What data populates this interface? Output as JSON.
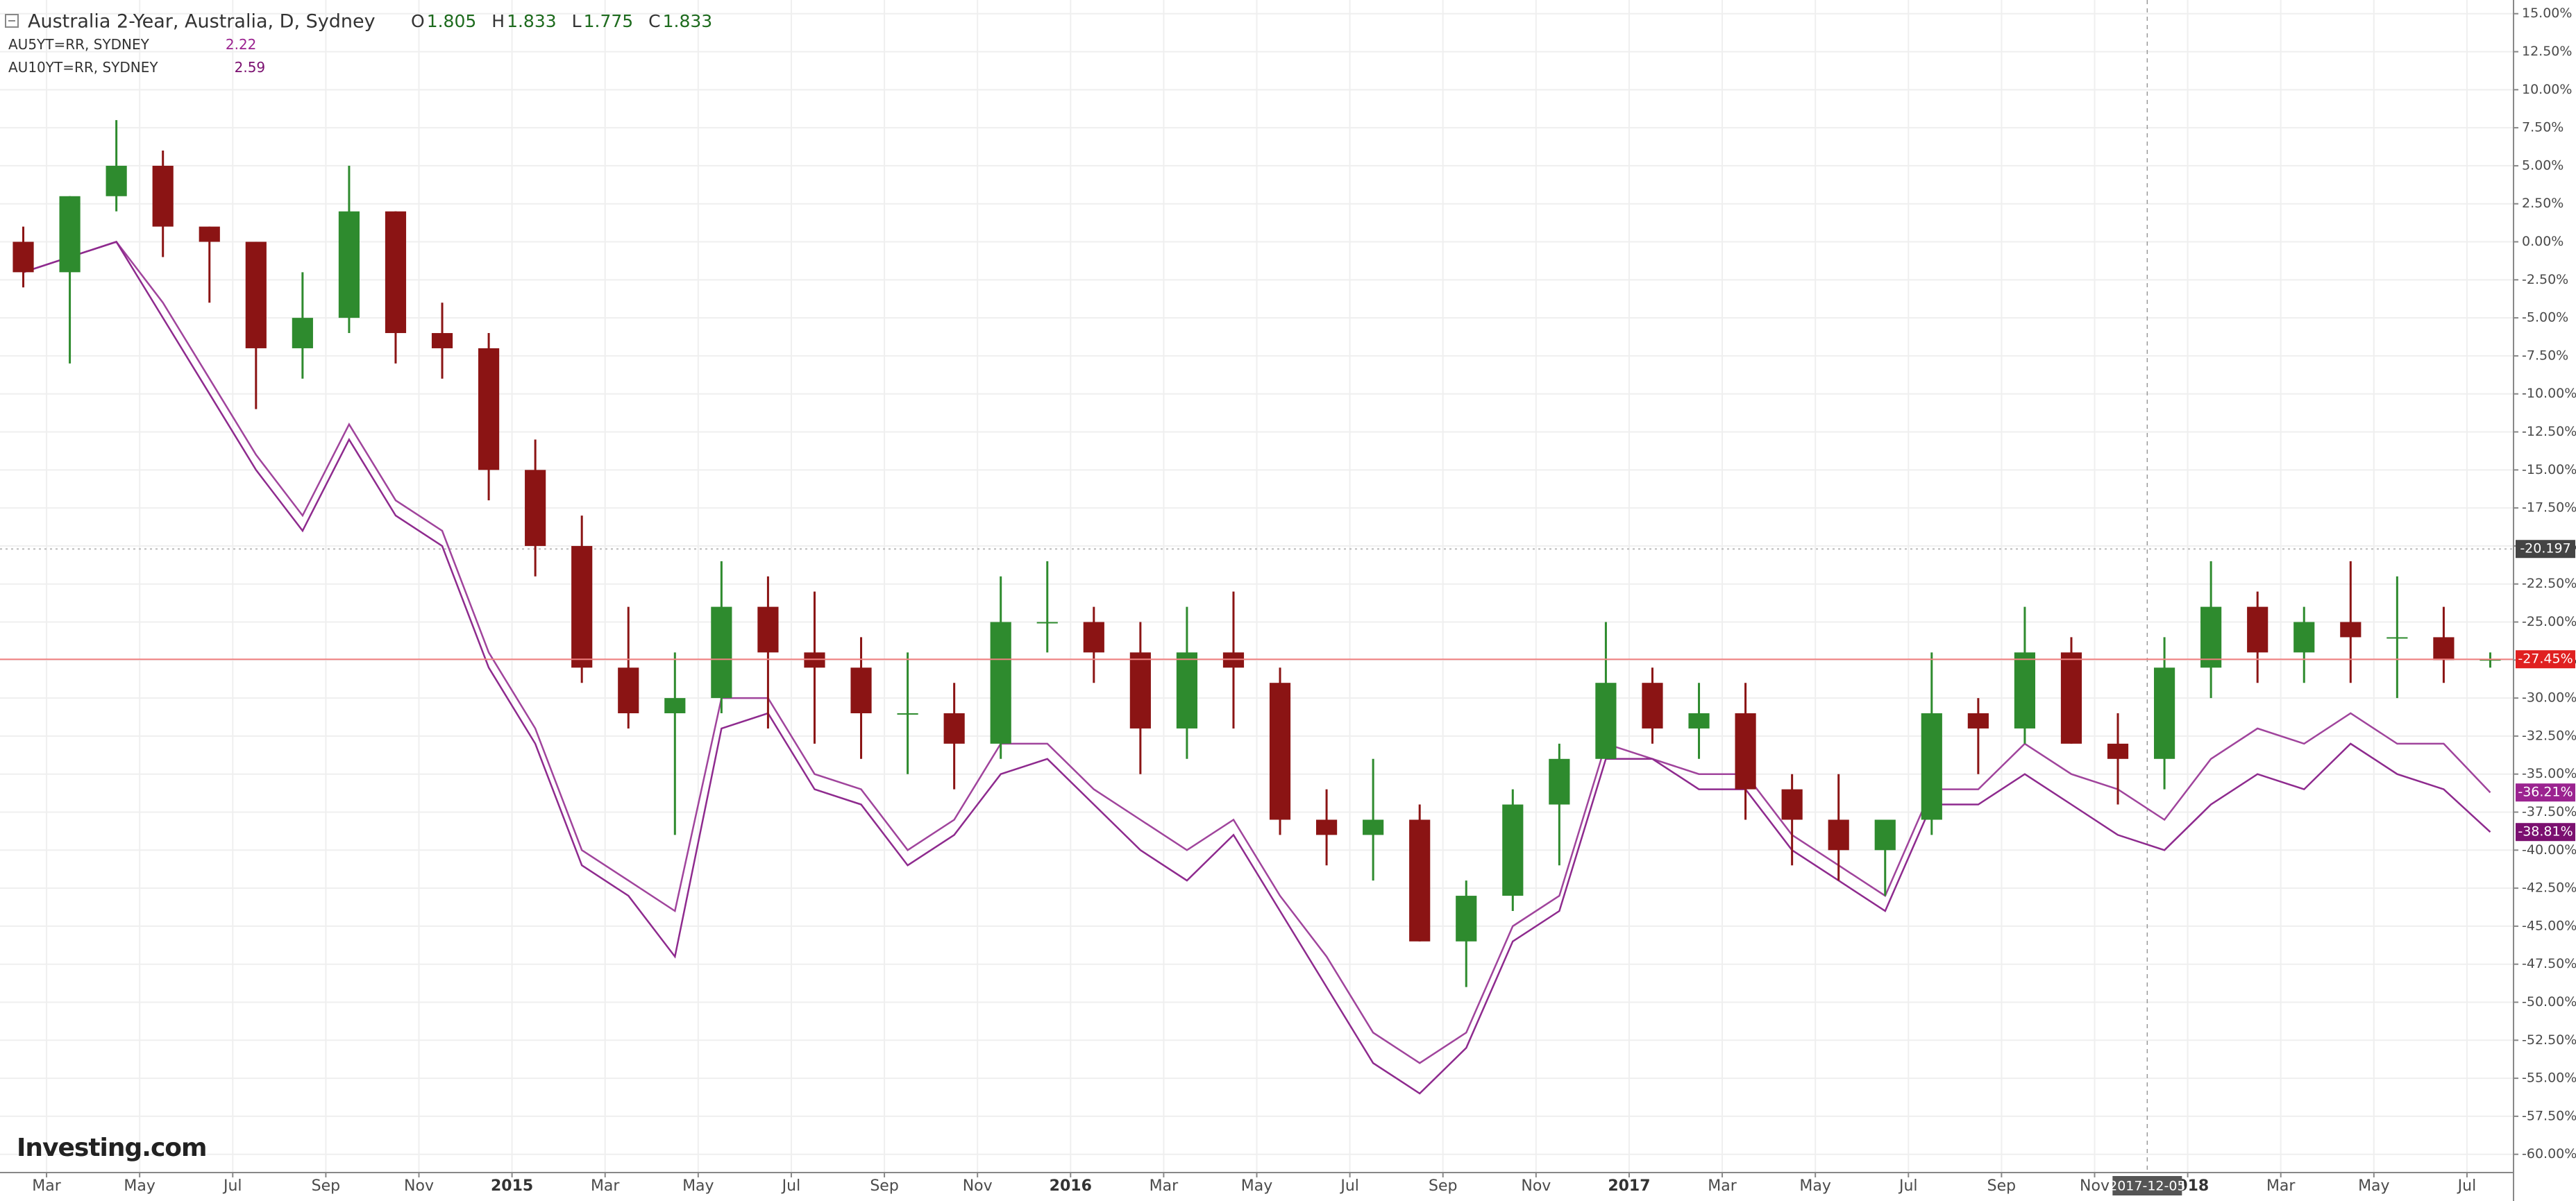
{
  "chart_data": {
    "type": "candlestick",
    "title": "Australia 2-Year, Australia, D, Sydney",
    "ohlc": [
      {
        "key": "O",
        "value": 1.805
      },
      {
        "key": "H",
        "value": 1.833
      },
      {
        "key": "L",
        "value": 1.775
      },
      {
        "key": "C",
        "value": 1.833
      }
    ],
    "x": [
      "2014-02",
      "2014-03",
      "2014-04",
      "2014-05",
      "2014-06",
      "2014-07",
      "2014-08",
      "2014-09",
      "2014-10",
      "2014-11",
      "2014-12",
      "2015-01",
      "2015-02",
      "2015-03",
      "2015-04",
      "2015-05",
      "2015-06",
      "2015-07",
      "2015-08",
      "2015-09",
      "2015-10",
      "2015-11",
      "2015-12",
      "2016-01",
      "2016-02",
      "2016-03",
      "2016-04",
      "2016-05",
      "2016-06",
      "2016-07",
      "2016-08",
      "2016-09",
      "2016-10",
      "2016-11",
      "2016-12",
      "2017-01",
      "2017-02",
      "2017-03",
      "2017-04",
      "2017-05",
      "2017-06",
      "2017-07",
      "2017-08",
      "2017-09",
      "2017-10",
      "2017-11",
      "2017-12",
      "2018-01",
      "2018-02",
      "2018-03",
      "2018-04",
      "2018-05",
      "2018-06",
      "2018-07"
    ],
    "open": [
      0,
      -2,
      3,
      5,
      1,
      0,
      -7,
      -5,
      2,
      -6,
      -7,
      -15,
      -20,
      -28,
      -31,
      -30,
      -24,
      -27,
      -28,
      -31,
      -31,
      -33,
      -25,
      -25,
      -27,
      -32,
      -27,
      -29,
      -38,
      -39,
      -38,
      -46,
      -43,
      -37,
      -34,
      -29,
      -32,
      -31,
      -36,
      -38,
      -40,
      -38,
      -31,
      -32,
      -27,
      -33,
      -34,
      -28,
      -24,
      -27,
      -25,
      -26,
      -26,
      -27.5
    ],
    "high": [
      1,
      3,
      8,
      6,
      1,
      0,
      -2,
      5,
      2,
      -4,
      -6,
      -13,
      -18,
      -24,
      -27,
      -21,
      -22,
      -23,
      -26,
      -27,
      -29,
      -22,
      -21,
      -24,
      -25,
      -24,
      -23,
      -28,
      -36,
      -34,
      -37,
      -42,
      -36,
      -33,
      -25,
      -28,
      -29,
      -29,
      -35,
      -35,
      -38,
      -27,
      -30,
      -24,
      -26,
      -31,
      -26,
      -21,
      -23,
      -24,
      -21,
      -22,
      -24,
      -27
    ],
    "low": [
      -3,
      -8,
      2,
      -1,
      -4,
      -11,
      -9,
      -6,
      -8,
      -9,
      -17,
      -22,
      -29,
      -32,
      -39,
      -31,
      -32,
      -33,
      -34,
      -35,
      -36,
      -34,
      -27,
      -29,
      -35,
      -34,
      -32,
      -39,
      -41,
      -42,
      -46,
      -49,
      -44,
      -41,
      -34,
      -33,
      -34,
      -38,
      -41,
      -42,
      -43,
      -39,
      -35,
      -33,
      -33,
      -37,
      -36,
      -30,
      -29,
      -29,
      -29,
      -30,
      -29,
      -28
    ],
    "close": [
      -2,
      3,
      5,
      1,
      0,
      -7,
      -5,
      2,
      -6,
      -7,
      -15,
      -20,
      -28,
      -31,
      -30,
      -24,
      -27,
      -28,
      -31,
      -31,
      -33,
      -25,
      -25,
      -27,
      -32,
      -27,
      -28,
      -38,
      -39,
      -38,
      -46,
      -43,
      -37,
      -34,
      -29,
      -32,
      -31,
      -36,
      -38,
      -40,
      -38,
      -31,
      -32,
      -27,
      -33,
      -34,
      -28,
      -24,
      -27,
      -25,
      -26,
      -26,
      -27.5,
      -27.45
    ],
    "close_label": "-27.45%",
    "up_color": "#2e8b2e",
    "down_color": "#8b1414",
    "series": [
      {
        "name": "AU5YT=RR, SYDNEY",
        "legend_value": 2.22,
        "color": "#a0449c",
        "label_color": "#9b2390",
        "last_label": "-36.21%",
        "values": [
          -2,
          -1,
          0,
          -4,
          -9,
          -14,
          -18,
          -12,
          -17,
          -19,
          -27,
          -32,
          -40,
          -42,
          -44,
          -30,
          -30,
          -35,
          -36,
          -40,
          -38,
          -33,
          -33,
          -36,
          -38,
          -40,
          -38,
          -43,
          -47,
          -52,
          -54,
          -52,
          -45,
          -43,
          -33,
          -34,
          -35,
          -35,
          -39,
          -41,
          -43,
          -36,
          -36,
          -33,
          -35,
          -36,
          -38,
          -34,
          -32,
          -33,
          -31,
          -33,
          -33,
          -36.21
        ]
      },
      {
        "name": "AU10YT=RR, SYDNEY",
        "legend_value": 2.59,
        "color": "#8e2a8e",
        "label_color": "#7b1070",
        "last_label": "-38.81%",
        "values": [
          -2,
          -1,
          0,
          -5,
          -10,
          -15,
          -19,
          -13,
          -18,
          -20,
          -28,
          -33,
          -41,
          -43,
          -47,
          -32,
          -31,
          -36,
          -37,
          -41,
          -39,
          -35,
          -34,
          -37,
          -40,
          -42,
          -39,
          -44,
          -49,
          -54,
          -56,
          -53,
          -46,
          -44,
          -34,
          -34,
          -36,
          -36,
          -40,
          -42,
          -44,
          -37,
          -37,
          -35,
          -37,
          -39,
          -40,
          -37,
          -35,
          -36,
          -33,
          -35,
          -36,
          -38.81
        ]
      }
    ],
    "price_line": -20.197,
    "crosshair_x": "2017-12-05",
    "logo": "Investing.com",
    "xlim": [
      "2014-02",
      "2018-08"
    ],
    "xticks": [
      {
        "value": "2014-03",
        "label": "Mar"
      },
      {
        "value": "2014-05",
        "label": "May"
      },
      {
        "value": "2014-07",
        "label": "Jul"
      },
      {
        "value": "2014-09",
        "label": "Sep"
      },
      {
        "value": "2014-11",
        "label": "Nov"
      },
      {
        "value": "2015-01",
        "label": "2015"
      },
      {
        "value": "2015-03",
        "label": "Mar"
      },
      {
        "value": "2015-05",
        "label": "May"
      },
      {
        "value": "2015-07",
        "label": "Jul"
      },
      {
        "value": "2015-09",
        "label": "Sep"
      },
      {
        "value": "2015-11",
        "label": "Nov"
      },
      {
        "value": "2016-01",
        "label": "2016"
      },
      {
        "value": "2016-03",
        "label": "Mar"
      },
      {
        "value": "2016-05",
        "label": "May"
      },
      {
        "value": "2016-07",
        "label": "Jul"
      },
      {
        "value": "2016-09",
        "label": "Sep"
      },
      {
        "value": "2016-11",
        "label": "Nov"
      },
      {
        "value": "2017-01",
        "label": "2017"
      },
      {
        "value": "2017-03",
        "label": "Mar"
      },
      {
        "value": "2017-05",
        "label": "May"
      },
      {
        "value": "2017-07",
        "label": "Jul"
      },
      {
        "value": "2017-09",
        "label": "Sep"
      },
      {
        "value": "2017-11",
        "label": "Nov"
      },
      {
        "value": "2018-01",
        "label": "2018"
      },
      {
        "value": "2018-03",
        "label": "Mar"
      },
      {
        "value": "2018-05",
        "label": "May"
      },
      {
        "value": "2018-07",
        "label": "Jul"
      }
    ],
    "ylim": [
      -61.2,
      15.9
    ],
    "yticks": [
      {
        "value": 15,
        "label": "15.00%"
      },
      {
        "value": 12.5,
        "label": "12.50%"
      },
      {
        "value": 10,
        "label": "10.00%"
      },
      {
        "value": 7.5,
        "label": "7.50%"
      },
      {
        "value": 5,
        "label": "5.00%"
      },
      {
        "value": 2.5,
        "label": "2.50%"
      },
      {
        "value": 0,
        "label": "0.00%"
      },
      {
        "value": -2.5,
        "label": "-2.50%"
      },
      {
        "value": -5,
        "label": "-5.00%"
      },
      {
        "value": -7.5,
        "label": "-7.50%"
      },
      {
        "value": -10,
        "label": "-10.00%"
      },
      {
        "value": -12.5,
        "label": "-12.50%"
      },
      {
        "value": -15,
        "label": "-15.00%"
      },
      {
        "value": -17.5,
        "label": "-17.50%"
      },
      {
        "value": -20,
        "label": "-20.00%"
      },
      {
        "value": -22.5,
        "label": "-22.50%"
      },
      {
        "value": -25,
        "label": "-25.00%"
      },
      {
        "value": -27.5,
        "label": "-27.50%"
      },
      {
        "value": -30,
        "label": "-30.00%"
      },
      {
        "value": -32.5,
        "label": "-32.50%"
      },
      {
        "value": -35,
        "label": "-35.00%"
      },
      {
        "value": -37.5,
        "label": "-37.50%"
      },
      {
        "value": -40,
        "label": "-40.00%"
      },
      {
        "value": -42.5,
        "label": "-42.50%"
      },
      {
        "value": -45,
        "label": "-45.00%"
      },
      {
        "value": -47.5,
        "label": "-47.50%"
      },
      {
        "value": -50,
        "label": "-50.00%"
      },
      {
        "value": -52.5,
        "label": "-52.50%"
      },
      {
        "value": -55,
        "label": "-55.00%"
      },
      {
        "value": -57.5,
        "label": "-57.50%"
      },
      {
        "value": -60,
        "label": "-60.00%"
      }
    ],
    "grid": true
  }
}
